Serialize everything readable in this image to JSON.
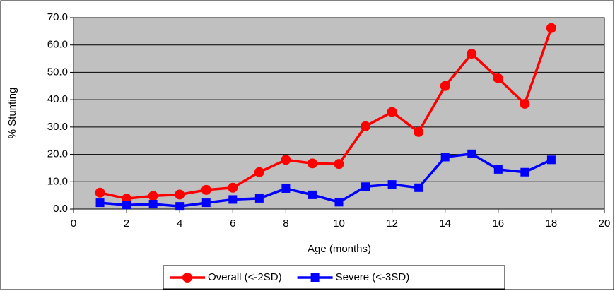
{
  "chart_data": {
    "type": "line",
    "x": [
      1,
      2,
      3,
      4,
      5,
      6,
      7,
      8,
      9,
      10,
      11,
      12,
      13,
      14,
      15,
      16,
      17,
      18
    ],
    "series": [
      {
        "name": "Overall (<-2SD)",
        "color": "#ff0000",
        "marker": "circle",
        "values": [
          6.0,
          3.8,
          4.8,
          5.3,
          7.0,
          7.8,
          13.5,
          18.0,
          16.7,
          16.5,
          30.3,
          35.5,
          28.2,
          45.0,
          56.8,
          47.8,
          38.5,
          66.2
        ]
      },
      {
        "name": "Severe (<-3SD)",
        "color": "#0000ff",
        "marker": "square",
        "values": [
          2.3,
          1.5,
          1.8,
          1.0,
          2.3,
          3.5,
          3.9,
          7.5,
          5.2,
          2.5,
          8.2,
          9.0,
          7.8,
          19.0,
          20.2,
          14.5,
          13.5,
          18.0
        ]
      }
    ],
    "xlabel": "Age (months)",
    "ylabel": "% Stunting",
    "xlim": [
      0,
      20
    ],
    "xticks": [
      0,
      2,
      4,
      6,
      8,
      10,
      12,
      14,
      16,
      18,
      20
    ],
    "ylim": [
      0,
      70
    ],
    "yticks": [
      {
        "value": 0,
        "label": "0.0"
      },
      {
        "value": 10,
        "label": "10.0"
      },
      {
        "value": 20,
        "label": "20.0"
      },
      {
        "value": 30,
        "label": "30.0"
      },
      {
        "value": 40,
        "label": "40.0"
      },
      {
        "value": 50,
        "label": "50.0"
      },
      {
        "value": 60,
        "label": "60.0"
      },
      {
        "value": 70,
        "label": "70.0"
      }
    ],
    "grid": true,
    "plot_background": "#c0c0c0",
    "legend": "bottom"
  }
}
